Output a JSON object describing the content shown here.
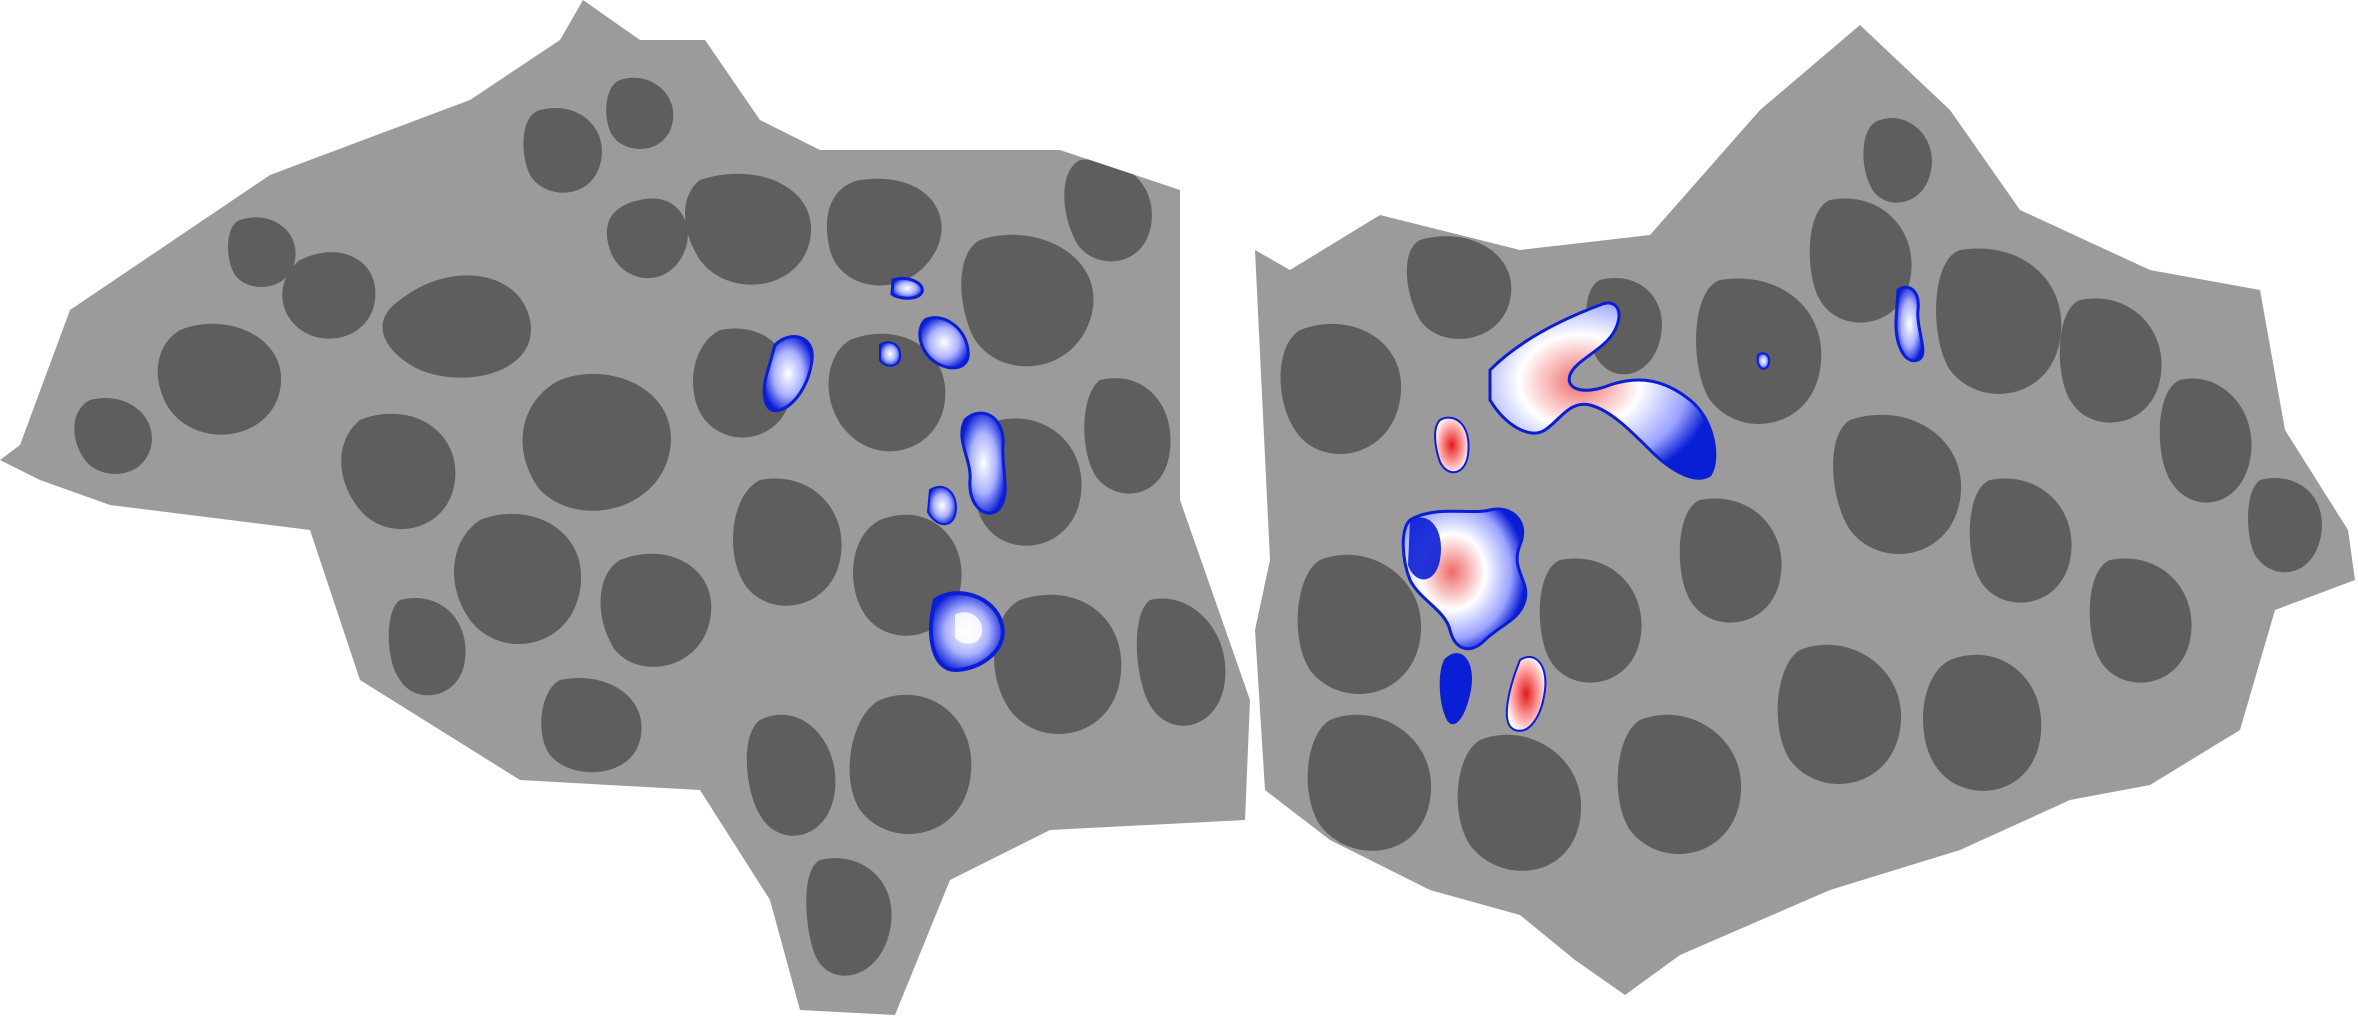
{
  "figure": {
    "background_color": "#ffffff",
    "surface_colors": {
      "gyri": "#9b9b9b",
      "sulci": "#5e5e5e"
    },
    "activation_colors": {
      "negative_strong": "#0a1ed6",
      "negative_weak": "#8f97ff",
      "neutral": "#ffffff",
      "positive_weak": "#ff9f9f",
      "positive_strong": "#e31b1b"
    },
    "hemispheres": [
      {
        "id": "left",
        "description": ""
      },
      {
        "id": "right",
        "description": ""
      }
    ]
  }
}
